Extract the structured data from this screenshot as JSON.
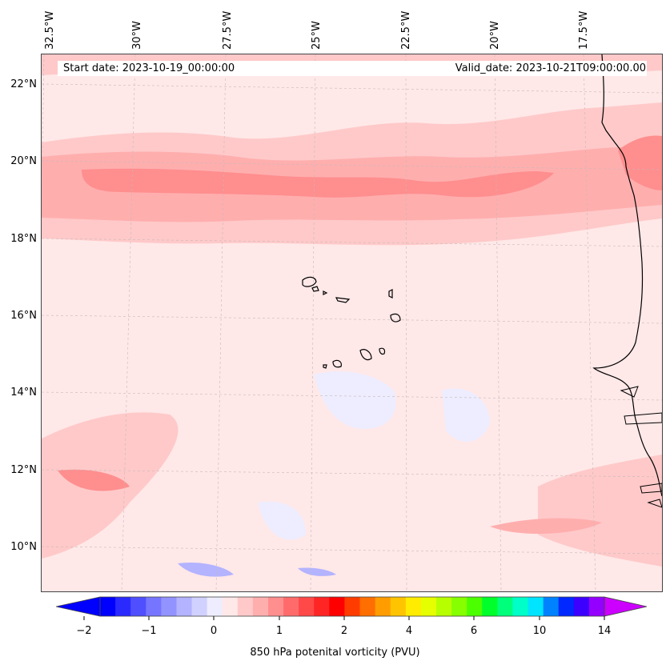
{
  "map": {
    "start_date": "Start date: 2023-10-19_00:00:00",
    "valid_date": "Valid_date: 2023-10-21T09:00:00.00",
    "longitude_labels": [
      "32.5°W",
      "30°W",
      "27.5°W",
      "25°W",
      "22.5°W",
      "20°W",
      "17.5°W"
    ],
    "latitude_labels": [
      "22°N",
      "20°N",
      "18°N",
      "16°N",
      "14°N",
      "12°N",
      "10°N"
    ],
    "variable": "850 hPa potential vorticity",
    "gridlines": true
  },
  "colorbar": {
    "label": "850 hPa potenital vorticity (PVU)",
    "tick_labels": [
      "−2",
      "−1",
      "0",
      "1",
      "2",
      "4",
      "6",
      "10",
      "14"
    ],
    "colors": [
      "#0000ff",
      "#2a2aff",
      "#4f4fff",
      "#7575ff",
      "#9393ff",
      "#b3b3ff",
      "#d1d1ff",
      "#ededff",
      "#ffe8e8",
      "#ffc9c9",
      "#ffaeae",
      "#ff8e8e",
      "#ff6b6b",
      "#ff4848",
      "#ff2525",
      "#ff0000",
      "#ff3c00",
      "#ff6e00",
      "#ff9c00",
      "#ffc400",
      "#ffec00",
      "#e6ff00",
      "#b7ff00",
      "#86ff00",
      "#4cff00",
      "#00ff2a",
      "#00ff7a",
      "#00ffc8",
      "#00e4ff",
      "#0082ff",
      "#0028ff",
      "#3c00ff",
      "#9400ff"
    ],
    "extend_low_color": "#0000ff",
    "extend_high_color": "#cc00ff"
  }
}
